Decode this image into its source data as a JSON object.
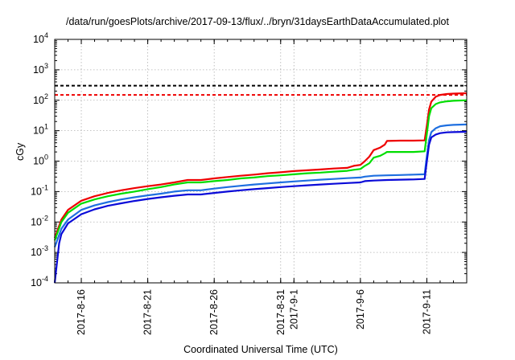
{
  "chart_data": {
    "type": "line",
    "title": "/data/run/goesPlots/archive/2017-09-13/flux/../bryn/31daysEarthDataAccumulated.plot",
    "xlabel": "Coordinated Universal Time (UTC)",
    "ylabel": "cGy",
    "yscale": "log",
    "ylim": [
      0.0001,
      10000
    ],
    "y_ticks": [
      {
        "value": 0.0001,
        "base": "10",
        "exp": "-4"
      },
      {
        "value": 0.001,
        "base": "10",
        "exp": "-3"
      },
      {
        "value": 0.01,
        "base": "10",
        "exp": "-2"
      },
      {
        "value": 0.1,
        "base": "10",
        "exp": "-1"
      },
      {
        "value": 1,
        "base": "10",
        "exp": "0"
      },
      {
        "value": 10,
        "base": "10",
        "exp": "1"
      },
      {
        "value": 100,
        "base": "10",
        "exp": "2"
      },
      {
        "value": 1000,
        "base": "10",
        "exp": "3"
      },
      {
        "value": 10000,
        "base": "10",
        "exp": "4"
      }
    ],
    "xlim": [
      "2017-08-14",
      "2017-09-14"
    ],
    "x_ticks": [
      {
        "date": "2017-08-16",
        "label": "2017-8-16"
      },
      {
        "date": "2017-08-21",
        "label": "2017-8-21"
      },
      {
        "date": "2017-08-26",
        "label": "2017-8-26"
      },
      {
        "date": "2017-08-31",
        "label": "2017-8-31"
      },
      {
        "date": "2017-09-01",
        "label": "2017-9-1"
      },
      {
        "date": "2017-09-06",
        "label": "2017-9-6"
      },
      {
        "date": "2017-09-11",
        "label": "2017-9-11"
      }
    ],
    "grid": true,
    "reference_lines": [
      {
        "y": 300,
        "color": "#000000",
        "style": "dashed"
      },
      {
        "y": 150,
        "color": "#ee0000",
        "style": "dashed"
      }
    ],
    "series": [
      {
        "color": "#ee0000",
        "points": [
          [
            "2017-08-14",
            0.003
          ],
          [
            "2017-08-14 12:00",
            0.012
          ],
          [
            "2017-08-15",
            0.025
          ],
          [
            "2017-08-16",
            0.05
          ],
          [
            "2017-08-17",
            0.07
          ],
          [
            "2017-08-18",
            0.09
          ],
          [
            "2017-08-19",
            0.11
          ],
          [
            "2017-08-20",
            0.13
          ],
          [
            "2017-08-21",
            0.15
          ],
          [
            "2017-08-22",
            0.17
          ],
          [
            "2017-08-23",
            0.2
          ],
          [
            "2017-08-24",
            0.24
          ],
          [
            "2017-08-25",
            0.24
          ],
          [
            "2017-08-26",
            0.27
          ],
          [
            "2017-08-27",
            0.3
          ],
          [
            "2017-08-28",
            0.33
          ],
          [
            "2017-08-29",
            0.36
          ],
          [
            "2017-08-30",
            0.4
          ],
          [
            "2017-08-31",
            0.43
          ],
          [
            "2017-09-01",
            0.47
          ],
          [
            "2017-09-02",
            0.5
          ],
          [
            "2017-09-03",
            0.53
          ],
          [
            "2017-09-04",
            0.57
          ],
          [
            "2017-09-05",
            0.6
          ],
          [
            "2017-09-05 12:00",
            0.7
          ],
          [
            "2017-09-06",
            0.75
          ],
          [
            "2017-09-06 08:00",
            1.0
          ],
          [
            "2017-09-06 16:00",
            1.4
          ],
          [
            "2017-09-07",
            2.3
          ],
          [
            "2017-09-07 12:00",
            2.8
          ],
          [
            "2017-09-07 20:00",
            3.5
          ],
          [
            "2017-09-08",
            4.6
          ],
          [
            "2017-09-09",
            4.7
          ],
          [
            "2017-09-10",
            4.7
          ],
          [
            "2017-09-10 20:00",
            4.8
          ],
          [
            "2017-09-11 00:00",
            15
          ],
          [
            "2017-09-11 04:00",
            50
          ],
          [
            "2017-09-11 08:00",
            90
          ],
          [
            "2017-09-11 16:00",
            130
          ],
          [
            "2017-09-12",
            150
          ],
          [
            "2017-09-12 12:00",
            160
          ],
          [
            "2017-09-13",
            165
          ],
          [
            "2017-09-14",
            170
          ]
        ]
      },
      {
        "color": "#00dd00",
        "points": [
          [
            "2017-08-14",
            0.0025
          ],
          [
            "2017-08-14 12:00",
            0.01
          ],
          [
            "2017-08-15",
            0.02
          ],
          [
            "2017-08-16",
            0.04
          ],
          [
            "2017-08-17",
            0.055
          ],
          [
            "2017-08-18",
            0.07
          ],
          [
            "2017-08-19",
            0.085
          ],
          [
            "2017-08-20",
            0.1
          ],
          [
            "2017-08-21",
            0.12
          ],
          [
            "2017-08-22",
            0.14
          ],
          [
            "2017-08-23",
            0.17
          ],
          [
            "2017-08-24",
            0.2
          ],
          [
            "2017-08-25",
            0.2
          ],
          [
            "2017-08-26",
            0.22
          ],
          [
            "2017-08-27",
            0.24
          ],
          [
            "2017-08-28",
            0.27
          ],
          [
            "2017-08-29",
            0.29
          ],
          [
            "2017-08-30",
            0.32
          ],
          [
            "2017-08-31",
            0.34
          ],
          [
            "2017-09-01",
            0.37
          ],
          [
            "2017-09-02",
            0.4
          ],
          [
            "2017-09-03",
            0.42
          ],
          [
            "2017-09-04",
            0.45
          ],
          [
            "2017-09-05",
            0.48
          ],
          [
            "2017-09-05 12:00",
            0.52
          ],
          [
            "2017-09-06",
            0.55
          ],
          [
            "2017-09-06 08:00",
            0.7
          ],
          [
            "2017-09-06 16:00",
            0.85
          ],
          [
            "2017-09-07",
            1.3
          ],
          [
            "2017-09-07 12:00",
            1.5
          ],
          [
            "2017-09-07 20:00",
            1.8
          ],
          [
            "2017-09-08",
            2.0
          ],
          [
            "2017-09-09",
            2.0
          ],
          [
            "2017-09-10",
            2.0
          ],
          [
            "2017-09-10 20:00",
            2.1
          ],
          [
            "2017-09-11 00:00",
            8
          ],
          [
            "2017-09-11 04:00",
            30
          ],
          [
            "2017-09-11 08:00",
            55
          ],
          [
            "2017-09-11 16:00",
            75
          ],
          [
            "2017-09-12",
            85
          ],
          [
            "2017-09-12 12:00",
            92
          ],
          [
            "2017-09-13",
            96
          ],
          [
            "2017-09-14",
            100
          ]
        ]
      },
      {
        "color": "#1e6fe0",
        "points": [
          [
            "2017-08-14",
            0.0015
          ],
          [
            "2017-08-14 12:00",
            0.006
          ],
          [
            "2017-08-15",
            0.012
          ],
          [
            "2017-08-16",
            0.025
          ],
          [
            "2017-08-17",
            0.035
          ],
          [
            "2017-08-18",
            0.045
          ],
          [
            "2017-08-19",
            0.055
          ],
          [
            "2017-08-20",
            0.065
          ],
          [
            "2017-08-21",
            0.075
          ],
          [
            "2017-08-22",
            0.085
          ],
          [
            "2017-08-23",
            0.1
          ],
          [
            "2017-08-24",
            0.11
          ],
          [
            "2017-08-25",
            0.11
          ],
          [
            "2017-08-26",
            0.125
          ],
          [
            "2017-08-27",
            0.14
          ],
          [
            "2017-08-28",
            0.155
          ],
          [
            "2017-08-29",
            0.17
          ],
          [
            "2017-08-30",
            0.185
          ],
          [
            "2017-08-31",
            0.2
          ],
          [
            "2017-09-01",
            0.215
          ],
          [
            "2017-09-02",
            0.23
          ],
          [
            "2017-09-03",
            0.245
          ],
          [
            "2017-09-04",
            0.26
          ],
          [
            "2017-09-05",
            0.275
          ],
          [
            "2017-09-06",
            0.29
          ],
          [
            "2017-09-06 08:00",
            0.31
          ],
          [
            "2017-09-07",
            0.33
          ],
          [
            "2017-09-08",
            0.34
          ],
          [
            "2017-09-09",
            0.35
          ],
          [
            "2017-09-10",
            0.36
          ],
          [
            "2017-09-10 20:00",
            0.37
          ],
          [
            "2017-09-11 00:00",
            1.5
          ],
          [
            "2017-09-11 04:00",
            5
          ],
          [
            "2017-09-11 08:00",
            9
          ],
          [
            "2017-09-11 16:00",
            12
          ],
          [
            "2017-09-12",
            14
          ],
          [
            "2017-09-12 12:00",
            15
          ],
          [
            "2017-09-13",
            15.5
          ],
          [
            "2017-09-14",
            16
          ]
        ]
      },
      {
        "color": "#0a0ad8",
        "points": [
          [
            "2017-08-14",
            0.0001
          ],
          [
            "2017-08-14 08:00",
            0.002
          ],
          [
            "2017-08-14 12:00",
            0.004
          ],
          [
            "2017-08-15",
            0.009
          ],
          [
            "2017-08-16",
            0.018
          ],
          [
            "2017-08-17",
            0.026
          ],
          [
            "2017-08-18",
            0.034
          ],
          [
            "2017-08-19",
            0.041
          ],
          [
            "2017-08-20",
            0.049
          ],
          [
            "2017-08-21",
            0.057
          ],
          [
            "2017-08-22",
            0.065
          ],
          [
            "2017-08-23",
            0.073
          ],
          [
            "2017-08-24",
            0.08
          ],
          [
            "2017-08-25",
            0.08
          ],
          [
            "2017-08-26",
            0.09
          ],
          [
            "2017-08-27",
            0.1
          ],
          [
            "2017-08-28",
            0.11
          ],
          [
            "2017-08-29",
            0.12
          ],
          [
            "2017-08-30",
            0.13
          ],
          [
            "2017-08-31",
            0.14
          ],
          [
            "2017-09-01",
            0.15
          ],
          [
            "2017-09-02",
            0.16
          ],
          [
            "2017-09-03",
            0.17
          ],
          [
            "2017-09-04",
            0.18
          ],
          [
            "2017-09-05",
            0.19
          ],
          [
            "2017-09-06",
            0.2
          ],
          [
            "2017-09-06 08:00",
            0.22
          ],
          [
            "2017-09-07",
            0.23
          ],
          [
            "2017-09-08",
            0.24
          ],
          [
            "2017-09-09",
            0.245
          ],
          [
            "2017-09-10",
            0.25
          ],
          [
            "2017-09-10 20:00",
            0.26
          ],
          [
            "2017-09-11 00:00",
            1.0
          ],
          [
            "2017-09-11 04:00",
            3.5
          ],
          [
            "2017-09-11 08:00",
            6
          ],
          [
            "2017-09-11 16:00",
            7.5
          ],
          [
            "2017-09-12",
            8.3
          ],
          [
            "2017-09-12 12:00",
            8.8
          ],
          [
            "2017-09-13",
            9.0
          ],
          [
            "2017-09-14",
            9.2
          ]
        ]
      }
    ]
  }
}
